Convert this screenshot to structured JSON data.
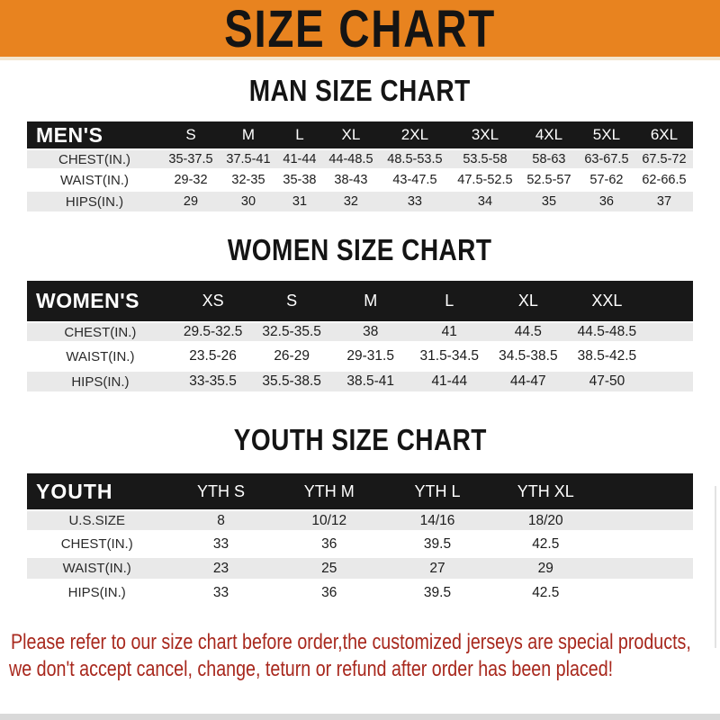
{
  "banner": {
    "title": "SIZE CHART"
  },
  "colors": {
    "banner-orange": "#e8831f",
    "band-black": "#181818",
    "row-gray": "#e9e9e9",
    "note-red": "#a8281d"
  },
  "sections": [
    {
      "id": "men",
      "title": "MAN SIZE CHART",
      "table": {
        "header_label": "MEN'S",
        "columns": [
          "S",
          "M",
          "L",
          "XL",
          "2XL",
          "3XL",
          "4XL",
          "5XL",
          "6XL"
        ],
        "rows": [
          {
            "label": "CHEST(IN.)",
            "values": [
              "35-37.5",
              "37.5-41",
              "41-44",
              "44-48.5",
              "48.5-53.5",
              "53.5-58",
              "58-63",
              "63-67.5",
              "67.5-72"
            ]
          },
          {
            "label": "WAIST(IN.)",
            "values": [
              "29-32",
              "32-35",
              "35-38",
              "38-43",
              "43-47.5",
              "47.5-52.5",
              "52.5-57",
              "57-62",
              "62-66.5"
            ]
          },
          {
            "label": "HIPS(IN.)",
            "values": [
              "29",
              "30",
              "31",
              "32",
              "33",
              "34",
              "35",
              "36",
              "37"
            ]
          }
        ]
      }
    },
    {
      "id": "women",
      "title": "WOMEN SIZE CHART",
      "table": {
        "header_label": "WOMEN'S",
        "columns": [
          "XS",
          "S",
          "M",
          "L",
          "XL",
          "XXL"
        ],
        "rows": [
          {
            "label": "CHEST(IN.)",
            "values": [
              "29.5-32.5",
              "32.5-35.5",
              "38",
              "41",
              "44.5",
              "44.5-48.5"
            ]
          },
          {
            "label": "WAIST(IN.)",
            "values": [
              "23.5-26",
              "26-29",
              "29-31.5",
              "31.5-34.5",
              "34.5-38.5",
              "38.5-42.5"
            ]
          },
          {
            "label": "HIPS(IN.)",
            "values": [
              "33-35.5",
              "35.5-38.5",
              "38.5-41",
              "41-44",
              "44-47",
              "47-50"
            ]
          }
        ]
      }
    },
    {
      "id": "youth",
      "title": "YOUTH SIZE CHART",
      "table": {
        "header_label": "YOUTH",
        "columns": [
          "YTH S",
          "YTH M",
          "YTH L",
          "YTH XL"
        ],
        "rows": [
          {
            "label": "U.S.SIZE",
            "values": [
              "8",
              "10/12",
              "14/16",
              "18/20"
            ]
          },
          {
            "label": "CHEST(IN.)",
            "values": [
              "33",
              "36",
              "39.5",
              "42.5"
            ]
          },
          {
            "label": "WAIST(IN.)",
            "values": [
              "23",
              "25",
              "27",
              "29"
            ]
          },
          {
            "label": "HIPS(IN.)",
            "values": [
              "33",
              "36",
              "39.5",
              "42.5"
            ]
          }
        ]
      }
    }
  ],
  "footer": {
    "line1": "Please refer to our size chart before order,the customized jerseys are special products,",
    "line2": "we don't accept cancel, change, teturn or refund after order has been placed!"
  }
}
